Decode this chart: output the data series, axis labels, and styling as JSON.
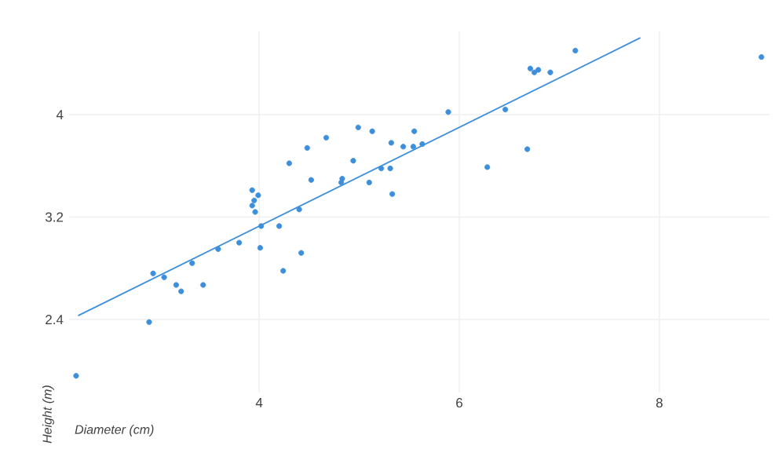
{
  "chart_data": {
    "type": "scatter",
    "xlabel": "Diameter (cm)",
    "ylabel": "Height (m)",
    "xlim": [
      2.1,
      9.1
    ],
    "ylim": [
      1.83,
      4.65
    ],
    "xticks": [
      4,
      6,
      8
    ],
    "yticks": [
      2.4,
      3.2,
      4
    ],
    "grid": true,
    "series": [
      {
        "marker": "circle",
        "color": "#3d8fdb",
        "x": [
          2.17,
          2.9,
          2.94,
          3.05,
          3.17,
          3.22,
          3.33,
          3.44,
          3.59,
          3.8,
          4.01,
          3.93,
          3.99,
          3.95,
          3.93,
          3.96,
          4.02,
          4.2,
          4.24,
          4.4,
          4.42,
          4.3,
          4.52,
          4.48,
          4.67,
          4.82,
          4.83,
          4.94,
          4.99,
          5.13,
          5.1,
          5.22,
          5.32,
          5.31,
          5.33,
          5.44,
          5.55,
          5.54,
          5.63,
          5.89,
          6.28,
          6.46,
          6.68,
          6.71,
          6.75,
          6.79,
          6.91,
          7.16,
          9.02
        ],
        "values": [
          1.96,
          2.38,
          2.76,
          2.73,
          2.67,
          2.62,
          2.84,
          2.67,
          2.95,
          3.0,
          2.96,
          3.41,
          3.37,
          3.33,
          3.29,
          3.24,
          3.13,
          3.13,
          2.78,
          3.26,
          2.92,
          3.62,
          3.49,
          3.74,
          3.82,
          3.47,
          3.5,
          3.64,
          3.9,
          3.87,
          3.47,
          3.58,
          3.78,
          3.58,
          3.38,
          3.75,
          3.87,
          3.75,
          3.77,
          4.02,
          3.59,
          4.04,
          3.73,
          4.36,
          4.33,
          4.35,
          4.33,
          4.5,
          4.45
        ]
      },
      {
        "type": "line",
        "marker": "none",
        "color": "#3d8fdb",
        "x": [
          2.19,
          7.81
        ],
        "values": [
          2.43,
          4.6
        ]
      }
    ]
  }
}
